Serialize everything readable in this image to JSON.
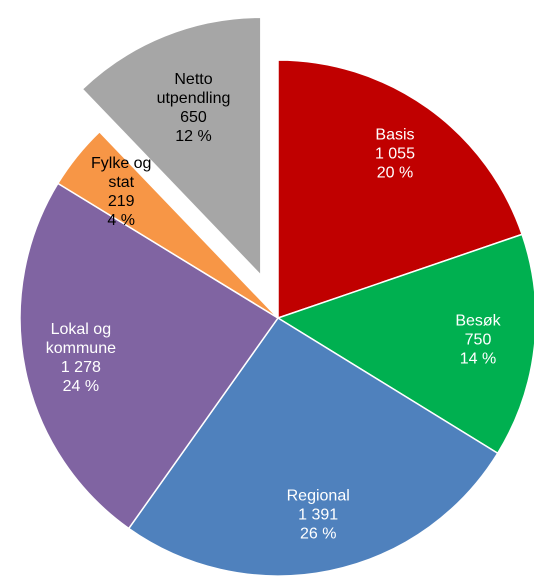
{
  "chart_data": {
    "type": "pie",
    "categories": [
      "Basis",
      "Besøk",
      "Regional",
      "Lokal og kommune",
      "Fylke og stat",
      "Netto utpendling"
    ],
    "values": [
      1055,
      750,
      1391,
      1278,
      219,
      650
    ],
    "value_labels": [
      "1 055",
      "750",
      "1 391",
      "1 278",
      "219",
      "650"
    ],
    "percentages": [
      20,
      14,
      26,
      24,
      4,
      12
    ],
    "percentage_labels": [
      "20 %",
      "14 %",
      "26 %",
      "24 %",
      "4 %",
      "12 %"
    ],
    "colors": [
      "#c00000",
      "#00b050",
      "#4f81bd",
      "#8064a2",
      "#f79646",
      "#a6a6a6"
    ],
    "label_colors": [
      "#ffffff",
      "#ffffff",
      "#ffffff",
      "#ffffff",
      "#000000",
      "#000000"
    ],
    "exploded": [
      "Netto utpendling"
    ]
  }
}
